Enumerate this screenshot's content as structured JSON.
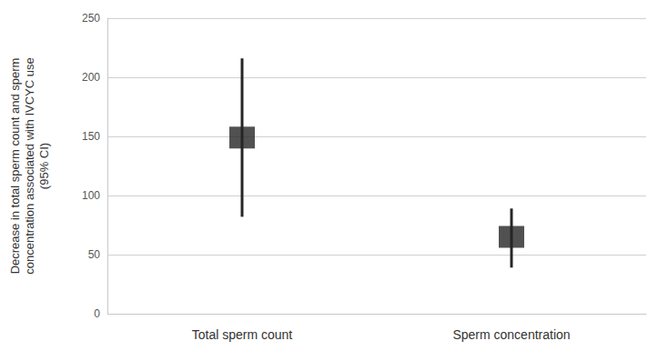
{
  "chart_data": {
    "type": "scatter",
    "y_label": "Decrease in total sperm count and sperm\nconcentration associated with IVCYC use\n(95% CI)",
    "categories": [
      "Total sperm count",
      "Sperm concentration"
    ],
    "values": [
      149,
      65
    ],
    "ci_low": [
      82,
      39
    ],
    "ci_high": [
      216,
      89
    ],
    "color": "#262626",
    "marker": "square",
    "ylim": [
      0,
      250
    ],
    "yticks": [
      0,
      50,
      100,
      150,
      200,
      250
    ],
    "grid": true
  }
}
